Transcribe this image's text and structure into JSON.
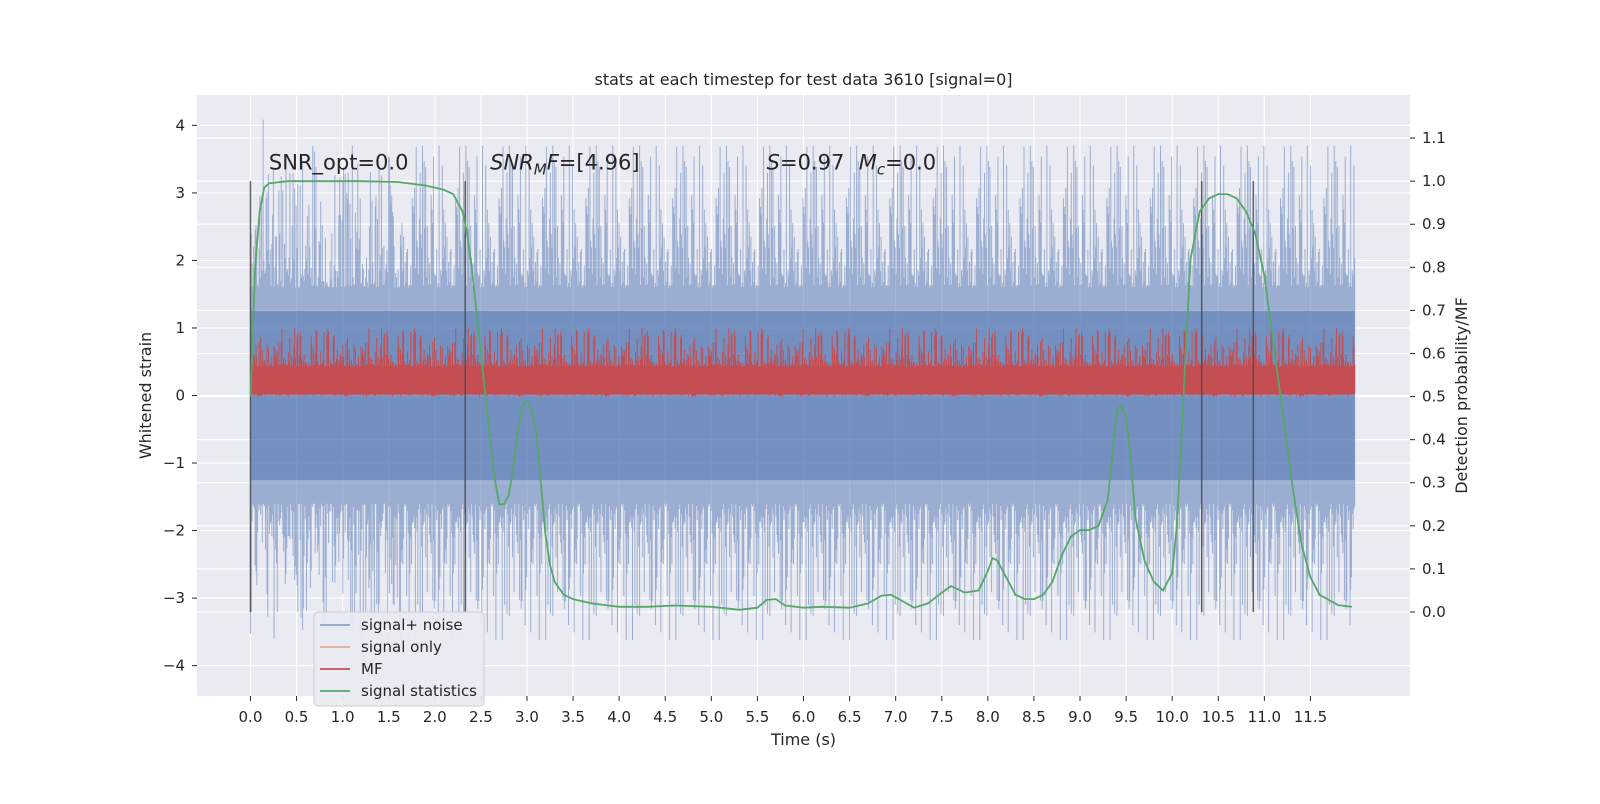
{
  "chart_data": {
    "type": "line",
    "title": "stats at each timestep for test data 3610 [signal=0]",
    "xlabel": "Time (s)",
    "ylabel": "Whitened strain",
    "y2label": "Detection probability/MF",
    "xlim": [
      -0.58,
      12.58
    ],
    "ylim": [
      -4.45,
      4.45
    ],
    "y2lim": [
      -0.195,
      1.2
    ],
    "xticks": [
      0.0,
      0.5,
      1.0,
      1.5,
      2.0,
      2.5,
      3.0,
      3.5,
      4.0,
      4.5,
      5.0,
      5.5,
      6.0,
      6.5,
      7.0,
      7.5,
      8.0,
      8.5,
      9.0,
      9.5,
      10.0,
      10.5,
      11.0,
      11.5
    ],
    "xtick_labels": [
      "0.0",
      "0.5",
      "1.0",
      "1.5",
      "2.0",
      "2.5",
      "3.0",
      "3.5",
      "4.0",
      "4.5",
      "5.0",
      "5.5",
      "6.0",
      "6.5",
      "7.0",
      "7.5",
      "8.0",
      "8.5",
      "9.0",
      "9.5",
      "10.0",
      "10.5",
      "11.0",
      "11.5"
    ],
    "yticks": [
      4,
      3,
      2,
      1,
      0,
      -1,
      -2,
      -3,
      -4
    ],
    "ytick_labels": [
      "4",
      "3",
      "2",
      "1",
      "0",
      "−1",
      "−2",
      "−3",
      "−4"
    ],
    "y2ticks": [
      1.1,
      1.0,
      0.9,
      0.8,
      0.7,
      0.6,
      0.5,
      0.4,
      0.3,
      0.2,
      0.1,
      0.0
    ],
    "y2tick_labels": [
      "1.1",
      "1.0",
      "0.9",
      "0.8",
      "0.7",
      "0.6",
      "0.5",
      "0.4",
      "0.3",
      "0.2",
      "0.1",
      "0.0"
    ],
    "grid": true,
    "legend_position": "lower-left",
    "colors": {
      "axes_bg": "#eaeaf2",
      "grid": "#ffffff",
      "noise": "#4c72b0",
      "signal_only": "#dd8452",
      "mf": "#c44e52",
      "stats": "#55a868",
      "vlines": "#4a4a4a"
    },
    "series": [
      {
        "name": "signal+ noise",
        "axis": "left",
        "kind": "noise-band",
        "t_start": 0.0,
        "t_end": 11.98,
        "typical_range": [
          -1.6,
          1.6
        ],
        "peak_max": 4.1,
        "peak_min": -4.0
      },
      {
        "name": "signal only",
        "axis": "left",
        "kind": "flat",
        "value": 0.0
      },
      {
        "name": "MF",
        "axis": "right",
        "kind": "noise-band",
        "t_start": 0.0,
        "t_end": 11.98,
        "typical_range": [
          0.52,
          0.57
        ],
        "peak_max": 0.66
      },
      {
        "name": "signal statistics",
        "axis": "right",
        "kind": "line",
        "x": [
          0.0,
          0.05,
          0.1,
          0.15,
          0.2,
          0.4,
          0.8,
          1.2,
          1.6,
          1.9,
          2.1,
          2.2,
          2.3,
          2.35,
          2.4,
          2.45,
          2.5,
          2.55,
          2.6,
          2.65,
          2.7,
          2.75,
          2.8,
          2.85,
          2.9,
          2.95,
          3.0,
          3.05,
          3.1,
          3.15,
          3.2,
          3.25,
          3.3,
          3.4,
          3.5,
          3.7,
          4.0,
          4.3,
          4.6,
          5.0,
          5.3,
          5.5,
          5.6,
          5.7,
          5.8,
          6.0,
          6.2,
          6.5,
          6.7,
          6.85,
          6.95,
          7.05,
          7.2,
          7.35,
          7.5,
          7.6,
          7.75,
          7.9,
          8.0,
          8.05,
          8.1,
          8.2,
          8.3,
          8.4,
          8.5,
          8.6,
          8.7,
          8.8,
          8.9,
          9.0,
          9.1,
          9.2,
          9.3,
          9.35,
          9.4,
          9.45,
          9.5,
          9.55,
          9.6,
          9.7,
          9.8,
          9.9,
          10.0,
          10.05,
          10.1,
          10.15,
          10.2,
          10.3,
          10.4,
          10.5,
          10.6,
          10.7,
          10.8,
          10.9,
          11.0,
          11.1,
          11.2,
          11.3,
          11.4,
          11.5,
          11.6,
          11.8,
          11.95
        ],
        "y": [
          0.5,
          0.8,
          0.93,
          0.985,
          0.995,
          1.0,
          1.0,
          1.0,
          0.998,
          0.99,
          0.98,
          0.97,
          0.93,
          0.88,
          0.8,
          0.7,
          0.6,
          0.5,
          0.4,
          0.31,
          0.25,
          0.25,
          0.27,
          0.33,
          0.42,
          0.48,
          0.49,
          0.47,
          0.42,
          0.3,
          0.18,
          0.11,
          0.07,
          0.04,
          0.03,
          0.02,
          0.012,
          0.012,
          0.015,
          0.012,
          0.005,
          0.01,
          0.028,
          0.03,
          0.015,
          0.01,
          0.012,
          0.01,
          0.02,
          0.038,
          0.04,
          0.028,
          0.01,
          0.02,
          0.045,
          0.06,
          0.045,
          0.05,
          0.095,
          0.125,
          0.12,
          0.08,
          0.04,
          0.03,
          0.03,
          0.04,
          0.07,
          0.13,
          0.175,
          0.19,
          0.19,
          0.2,
          0.26,
          0.36,
          0.47,
          0.48,
          0.45,
          0.36,
          0.22,
          0.12,
          0.07,
          0.05,
          0.09,
          0.2,
          0.4,
          0.62,
          0.82,
          0.93,
          0.96,
          0.97,
          0.97,
          0.96,
          0.93,
          0.88,
          0.78,
          0.62,
          0.46,
          0.3,
          0.16,
          0.08,
          0.04,
          0.016,
          0.012
        ]
      }
    ],
    "vertical_lines_x": [
      0.0,
      2.33,
      10.32,
      10.88
    ],
    "annotations": [
      {
        "text": "SNR_opt=0.0",
        "x": 0.2,
        "y": 3.3
      },
      {
        "text_main": "SNR",
        "text_sub": "M",
        "text_rest": "F=[4.96]",
        "x": 2.6,
        "y": 3.3
      },
      {
        "text": "S=0.97",
        "x": 5.6,
        "y": 3.3
      },
      {
        "text_main": "M",
        "text_sub": "c",
        "text_rest": "=0.0",
        "x": 6.6,
        "y": 3.3
      }
    ]
  }
}
